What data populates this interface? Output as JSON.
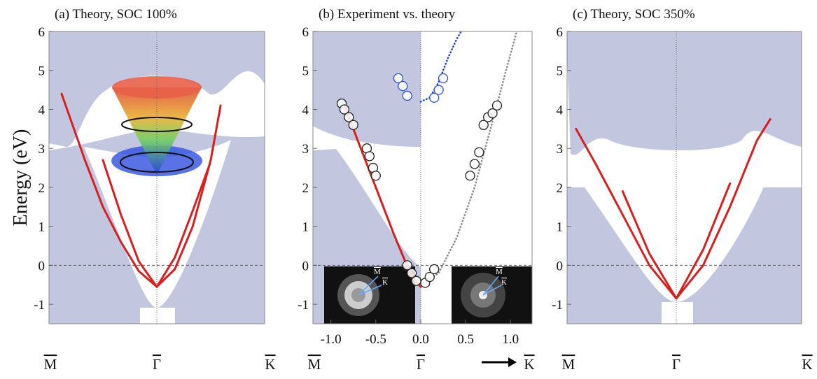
{
  "chart_data": [
    {
      "type": "line",
      "title": "(a) Theory, SOC 100%",
      "ylabel": "Energy (eV)",
      "xlim": [
        -1.2,
        1.2
      ],
      "ylim": [
        -1.5,
        6
      ],
      "yticks": [
        -1,
        0,
        1,
        2,
        3,
        4,
        5,
        6
      ],
      "kpoints": [
        "M",
        "Γ",
        "K"
      ],
      "series": [
        {
          "color": "#d62020",
          "x": [
            -1.06,
            -0.8,
            -0.6,
            -0.4,
            -0.2,
            0,
            0.2,
            0.4,
            0.6,
            0.71
          ],
          "values": [
            4.4,
            2.7,
            1.5,
            0.6,
            -0.15,
            -0.55,
            -0.1,
            1.0,
            2.7,
            4.1
          ]
        },
        {
          "color": "#d62020",
          "x": [
            -0.6,
            -0.4,
            -0.2,
            0,
            0.2,
            0.4,
            0.59
          ],
          "values": [
            2.7,
            1.3,
            0.1,
            -0.55,
            0.2,
            1.4,
            2.6
          ]
        }
      ]
    },
    {
      "type": "line",
      "title": "(b) Experiment vs. theory",
      "xlim": [
        -1.2,
        1.24
      ],
      "ylim": [
        -1.5,
        6
      ],
      "yticks": [
        -1,
        0,
        1,
        2,
        3,
        4,
        5,
        6
      ],
      "xticks": [
        {
          "value": -1,
          "label": "-1.0"
        },
        -0.5,
        {
          "value": 0,
          "label": "0.0"
        },
        0.5,
        {
          "value": 1,
          "label": "1.0"
        }
      ],
      "kpoints": [
        "M",
        "Γ",
        "K"
      ],
      "inset_labels": [
        [
          "M",
          "K"
        ],
        [
          "M",
          "K"
        ]
      ],
      "series": [
        {
          "color": "#d62020",
          "x": [
            -0.85,
            -0.7,
            -0.5,
            -0.3,
            -0.1,
            0
          ],
          "values": [
            4.1,
            3.2,
            2.0,
            0.8,
            -0.3,
            -0.55
          ]
        },
        {
          "color": "#888888",
          "dash": "dotted",
          "x": [
            0,
            0.2,
            0.4,
            0.6,
            0.8,
            0.95,
            1.07
          ],
          "values": [
            -0.5,
            -0.2,
            0.7,
            2.0,
            3.7,
            5.0,
            6
          ]
        },
        {
          "color": "#1f3fd0",
          "dash": "dotted",
          "x": [
            0,
            0.1,
            0.2,
            0.3,
            0.4,
            0.45
          ],
          "values": [
            4.2,
            4.3,
            4.7,
            5.3,
            5.8,
            6
          ]
        },
        {
          "color": "#222222",
          "marker": "circle",
          "x": [
            -0.88,
            -0.85,
            -0.8,
            -0.75,
            -0.6,
            -0.57,
            -0.53,
            -0.5,
            -0.15,
            -0.1,
            -0.05,
            0.05,
            0.1,
            0.15,
            0.55,
            0.6,
            0.65,
            0.7,
            0.75,
            0.8,
            0.85
          ],
          "values": [
            4.15,
            4.0,
            3.8,
            3.6,
            3.0,
            2.8,
            2.5,
            2.3,
            0.0,
            -0.2,
            -0.4,
            -0.45,
            -0.3,
            -0.1,
            2.3,
            2.6,
            2.9,
            3.6,
            3.8,
            3.9,
            4.1
          ]
        },
        {
          "color": "#3050e0",
          "marker": "circle",
          "x": [
            -0.25,
            -0.2,
            -0.15,
            0.15,
            0.2,
            0.25
          ],
          "values": [
            4.8,
            4.6,
            4.35,
            4.3,
            4.5,
            4.8
          ]
        }
      ]
    },
    {
      "type": "line",
      "title": "(c) Theory, SOC 350%",
      "xlim": [
        -1.22,
        1.4
      ],
      "ylim": [
        -1.5,
        6
      ],
      "yticks": [
        -1,
        0,
        1,
        2,
        3,
        4,
        5,
        6
      ],
      "kpoints": [
        "M",
        "Γ",
        "K"
      ],
      "series": [
        {
          "color": "#d62020",
          "x": [
            -1.12,
            -0.9,
            -0.6,
            -0.3,
            0,
            0.3,
            0.6,
            0.9,
            1.05
          ],
          "values": [
            3.5,
            2.6,
            1.3,
            0.0,
            -0.85,
            0.0,
            1.5,
            3.2,
            3.75
          ]
        },
        {
          "color": "#d62020",
          "x": [
            -0.6,
            -0.3,
            0,
            0.3,
            0.6
          ],
          "values": [
            1.9,
            0.3,
            -0.85,
            0.4,
            2.1
          ]
        }
      ]
    }
  ]
}
